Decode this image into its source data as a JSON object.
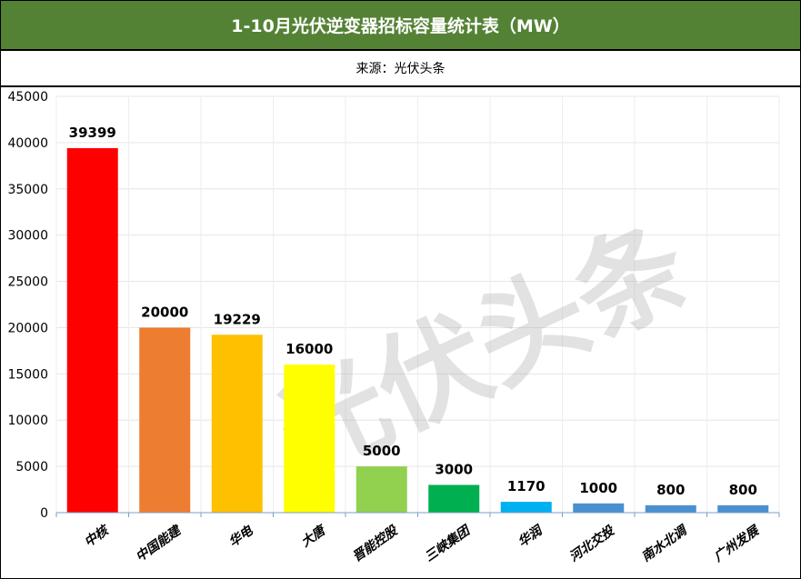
{
  "title": "1-10月光伏逆变器招标容量统计表（MW）",
  "source": "来源：光伏头条",
  "watermark": "光伏头条",
  "chart_data": {
    "type": "bar",
    "title": "1-10月光伏逆变器招标容量统计表（MW）",
    "xlabel": "",
    "ylabel": "",
    "ylim": [
      0,
      45000
    ],
    "yticks": [
      0,
      5000,
      10000,
      15000,
      20000,
      25000,
      30000,
      35000,
      40000,
      45000
    ],
    "grid": true,
    "categories": [
      "中核",
      "中国能建",
      "华电",
      "大唐",
      "晋能控股",
      "三峡集团",
      "华润",
      "河北交投",
      "南水北调",
      "广州发展"
    ],
    "values": [
      39399,
      20000,
      19229,
      16000,
      5000,
      3000,
      1170,
      1000,
      800,
      800
    ],
    "colors": [
      "#FF0000",
      "#ED7D31",
      "#FFC000",
      "#FFFF00",
      "#92D050",
      "#00B050",
      "#00B0F0",
      "#4A90D0",
      "#4A90D0",
      "#4A90D0"
    ]
  }
}
